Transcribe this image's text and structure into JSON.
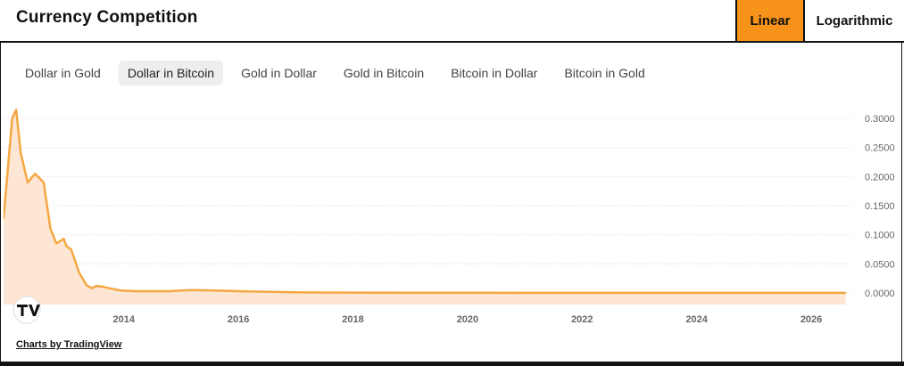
{
  "header": {
    "title": "Currency Competition"
  },
  "scale": {
    "linear_label": "Linear",
    "log_label": "Logarithmic",
    "active": "linear"
  },
  "tabs": [
    {
      "label": "Dollar in Gold",
      "active": false
    },
    {
      "label": "Dollar in Bitcoin",
      "active": true
    },
    {
      "label": "Gold in Dollar",
      "active": false
    },
    {
      "label": "Gold in Bitcoin",
      "active": false
    },
    {
      "label": "Bitcoin in Dollar",
      "active": false
    },
    {
      "label": "Bitcoin in Gold",
      "active": false
    }
  ],
  "footer": {
    "attribution": "Charts by TradingView"
  },
  "colors": {
    "accent": "#f7931a",
    "line": "#f5a742",
    "area": "#fde3cc",
    "grid": "#e4e4e4"
  },
  "chart_data": {
    "type": "area",
    "title": "",
    "xlabel": "",
    "ylabel": "",
    "xlim": [
      2011.9,
      2026.7
    ],
    "ylim": [
      -0.02,
      0.32
    ],
    "grid": true,
    "x_ticks": [
      2014,
      2016,
      2018,
      2020,
      2022,
      2024,
      2026
    ],
    "y_ticks": [
      0.3,
      0.25,
      0.2,
      0.15,
      0.1,
      0.05,
      0.0
    ],
    "y_tick_labels": [
      "0.3000",
      "0.2500",
      "0.2000",
      "0.1500",
      "0.1000",
      "0.0500",
      "0.0000"
    ],
    "series": [
      {
        "x": [
          2011.9,
          2012.05,
          2012.12,
          2012.2,
          2012.32,
          2012.45,
          2012.6,
          2012.72,
          2012.82,
          2012.95,
          2013.0,
          2013.08,
          2013.22,
          2013.35,
          2013.45,
          2013.52,
          2013.62,
          2013.75,
          2013.95,
          2014.2,
          2014.5,
          2014.8,
          2015.0,
          2015.2,
          2015.6,
          2016.0,
          2016.5,
          2017.0,
          2017.5,
          2018.0,
          2019.0,
          2020.0,
          2021.0,
          2022.0,
          2023.0,
          2024.0,
          2025.0,
          2026.0,
          2026.6
        ],
        "y": [
          0.127,
          0.3,
          0.315,
          0.24,
          0.19,
          0.205,
          0.19,
          0.11,
          0.085,
          0.093,
          0.08,
          0.075,
          0.035,
          0.013,
          0.008,
          0.012,
          0.011,
          0.008,
          0.004,
          0.003,
          0.003,
          0.003,
          0.004,
          0.005,
          0.004,
          0.003,
          0.002,
          0.001,
          0.0007,
          0.0005,
          0.0003,
          0.0002,
          0.0001,
          0.0001,
          0.0001,
          0.0001,
          0.0,
          0.0,
          0.0
        ]
      }
    ]
  }
}
